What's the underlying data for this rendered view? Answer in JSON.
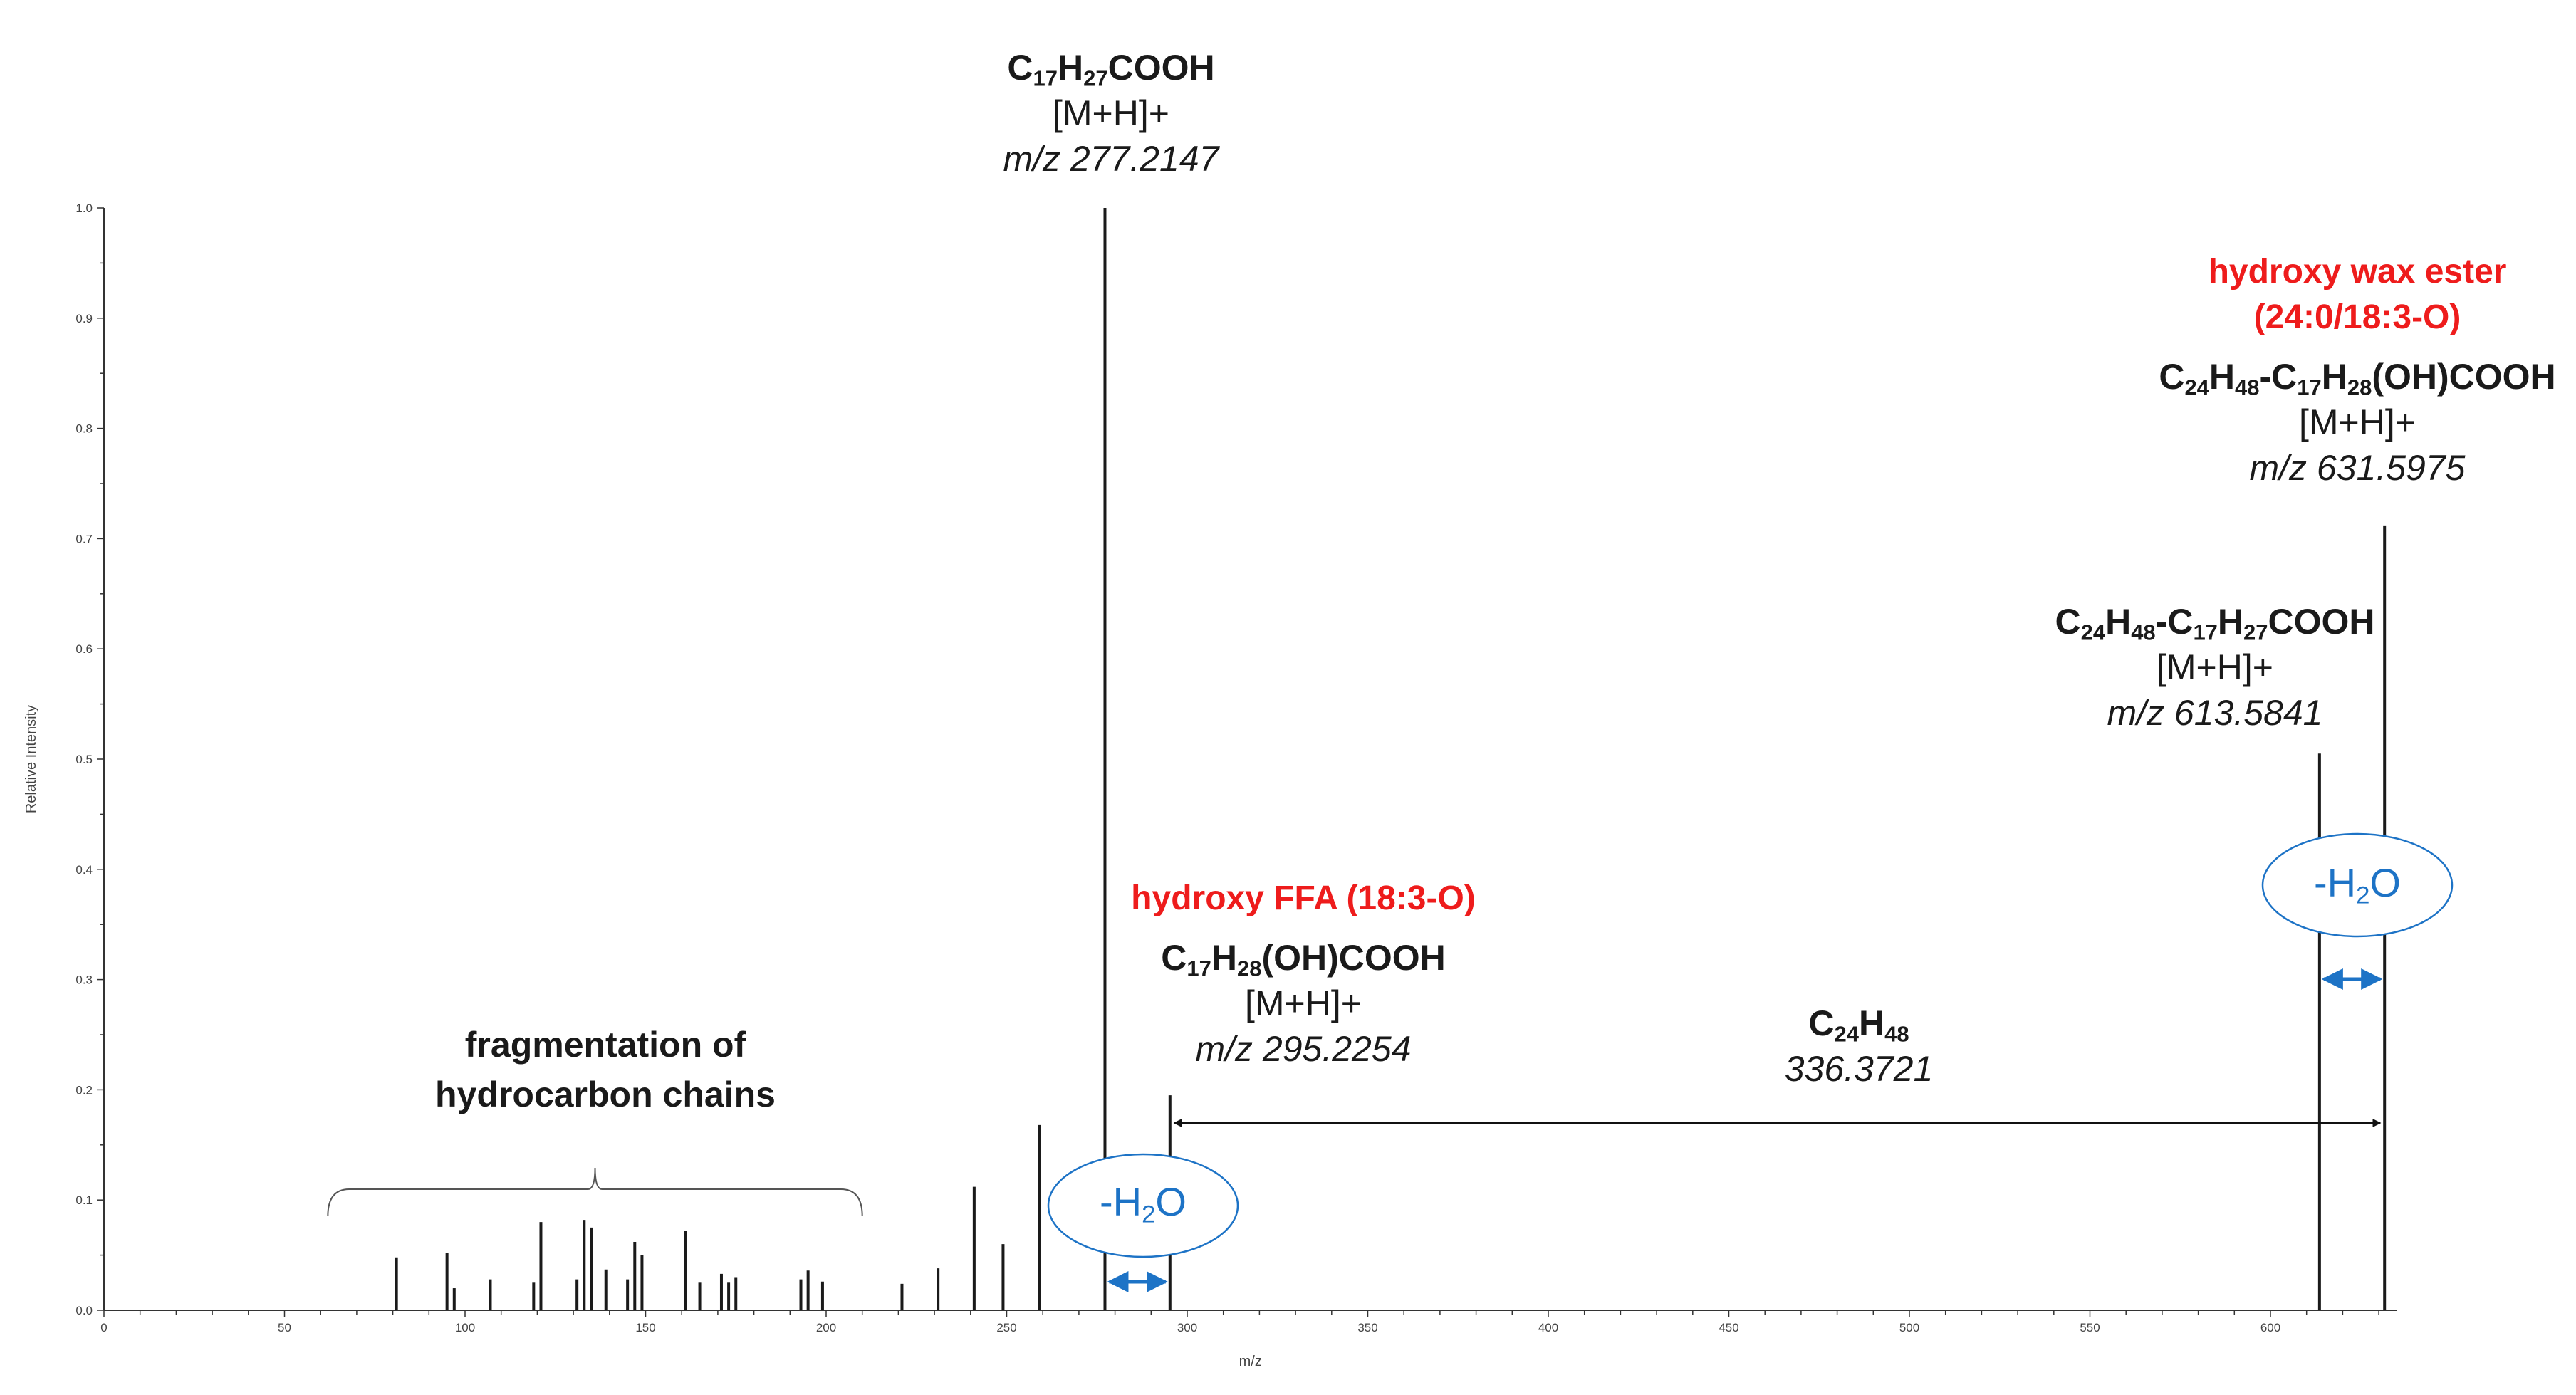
{
  "chart_data": {
    "type": "bar",
    "xlabel": "m/z",
    "ylabel": "Relative Intensity",
    "xlim": [
      0,
      635
    ],
    "ylim": [
      0,
      1.0
    ],
    "x_ticks": [
      0,
      50,
      100,
      150,
      200,
      250,
      300,
      350,
      400,
      450,
      500,
      550,
      600
    ],
    "y_ticks": [
      "0.0",
      "0.1",
      "0.2",
      "0.3",
      "0.4",
      "0.5",
      "0.6",
      "0.7",
      "0.8",
      "0.9",
      "1.0"
    ],
    "peaks": [
      {
        "x": 81,
        "y": 0.048
      },
      {
        "x": 95,
        "y": 0.052
      },
      {
        "x": 97,
        "y": 0.02
      },
      {
        "x": 107,
        "y": 0.028
      },
      {
        "x": 119,
        "y": 0.025
      },
      {
        "x": 121,
        "y": 0.08
      },
      {
        "x": 131,
        "y": 0.028
      },
      {
        "x": 133,
        "y": 0.082
      },
      {
        "x": 135,
        "y": 0.075
      },
      {
        "x": 139,
        "y": 0.037
      },
      {
        "x": 145,
        "y": 0.028
      },
      {
        "x": 147,
        "y": 0.062
      },
      {
        "x": 149,
        "y": 0.05
      },
      {
        "x": 161,
        "y": 0.072
      },
      {
        "x": 165,
        "y": 0.025
      },
      {
        "x": 171,
        "y": 0.033
      },
      {
        "x": 173,
        "y": 0.025
      },
      {
        "x": 175,
        "y": 0.03
      },
      {
        "x": 193,
        "y": 0.028
      },
      {
        "x": 195,
        "y": 0.036
      },
      {
        "x": 199,
        "y": 0.026
      },
      {
        "x": 221,
        "y": 0.024
      },
      {
        "x": 231,
        "y": 0.038
      },
      {
        "x": 241,
        "y": 0.112
      },
      {
        "x": 249,
        "y": 0.06
      },
      {
        "x": 259,
        "y": 0.168
      },
      {
        "x": 277.2147,
        "y": 1.0
      },
      {
        "x": 295.2254,
        "y": 0.195
      },
      {
        "x": 613.5841,
        "y": 0.505
      },
      {
        "x": 631.5975,
        "y": 0.712
      }
    ],
    "annotations": {
      "base_peak": {
        "formula": "C",
        "s1": "17",
        "h": "H",
        "s2": "27",
        "tail": "COOH",
        "ion": "[M+H]+",
        "mz": "m/z 277.2147"
      },
      "hydroxy_ffa": {
        "title": "hydroxy FFA (18:3-O)",
        "formula_a": "C",
        "s1": "17",
        "h": "H",
        "s2": "28",
        "tail": "(OH)COOH",
        "ion": "[M+H]+",
        "mz": "m/z 295.2254"
      },
      "wax_ester": {
        "title1": "hydroxy wax ester",
        "title2": "(24:0/18:3-O)",
        "p1": "C",
        "s1": "24",
        "p2": "H",
        "s2": "48",
        "p3": "-C",
        "s3": "17",
        "p4": "H",
        "s4": "28",
        "tail": "(OH)COOH",
        "ion": "[M+H]+",
        "mz": "m/z 631.5975"
      },
      "fragment_613": {
        "p1": "C",
        "s1": "24",
        "p2": "H",
        "s2": "48",
        "p3": "-C",
        "s3": "17",
        "p4": "H",
        "s4": "27",
        "tail": "COOH",
        "ion": "[M+H]+",
        "mz": "m/z 613.5841"
      },
      "neutral_loss": {
        "p1": "C",
        "s1": "24",
        "p2": "H",
        "s2": "48",
        "value": "336.3721"
      },
      "fragmentation": {
        "line1": "fragmentation of",
        "line2": "hydrocarbon chains"
      },
      "water_loss": {
        "pre": "-H",
        "sub": "2",
        "post": "O"
      }
    },
    "colors": {
      "red": "#ee1c1c",
      "blue": "#1d73c6",
      "peaks": "#1a1a1a"
    }
  }
}
